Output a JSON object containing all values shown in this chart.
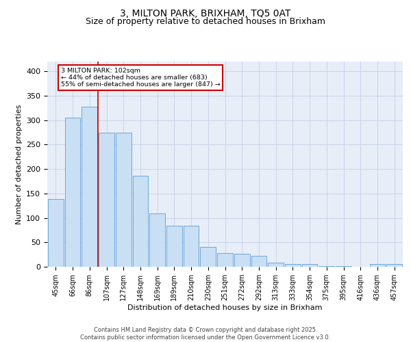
{
  "title": "3, MILTON PARK, BRIXHAM, TQ5 0AT",
  "subtitle": "Size of property relative to detached houses in Brixham",
  "xlabel": "Distribution of detached houses by size in Brixham",
  "ylabel": "Number of detached properties",
  "categories": [
    "45sqm",
    "66sqm",
    "86sqm",
    "107sqm",
    "127sqm",
    "148sqm",
    "169sqm",
    "189sqm",
    "210sqm",
    "230sqm",
    "251sqm",
    "272sqm",
    "292sqm",
    "313sqm",
    "333sqm",
    "354sqm",
    "375sqm",
    "395sqm",
    "416sqm",
    "436sqm",
    "457sqm"
  ],
  "values": [
    139,
    305,
    328,
    275,
    275,
    186,
    109,
    84,
    84,
    40,
    28,
    27,
    23,
    9,
    5,
    5,
    2,
    2,
    0,
    5,
    5
  ],
  "bar_color": "#c9dff4",
  "bar_edge_color": "#5b9bd5",
  "grid_color": "#c8d4e8",
  "background_color": "#e8eef8",
  "vline_color": "#cc0000",
  "annotation_text": "3 MILTON PARK: 102sqm\n← 44% of detached houses are smaller (683)\n55% of semi-detached houses are larger (847) →",
  "annotation_box_edge": "#cc0000",
  "footer": "Contains HM Land Registry data © Crown copyright and database right 2025.\nContains public sector information licensed under the Open Government Licence v3.0.",
  "ylim": [
    0,
    420
  ],
  "yticks": [
    0,
    50,
    100,
    150,
    200,
    250,
    300,
    350,
    400
  ],
  "title_fontsize": 10,
  "subtitle_fontsize": 9,
  "tick_fontsize": 7,
  "ylabel_fontsize": 8,
  "xlabel_fontsize": 8,
  "footer_fontsize": 6
}
